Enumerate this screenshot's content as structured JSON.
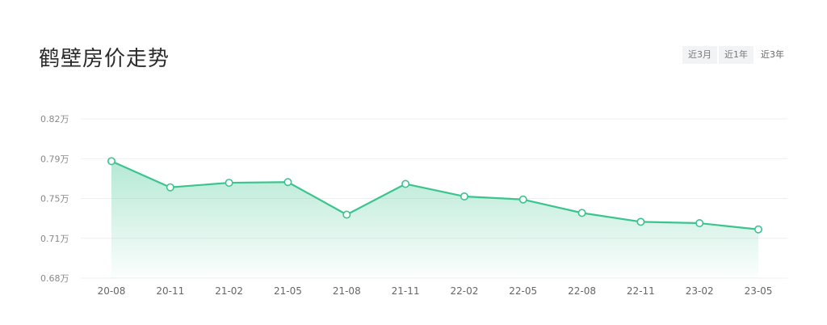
{
  "title": "鹤壁房价走势",
  "range_tabs": [
    {
      "label": "近3月"
    },
    {
      "label": "近1年"
    },
    {
      "label": "近3年"
    }
  ],
  "colors": {
    "line": "#3cc48f",
    "area_top": "#3cc48f",
    "grid": "#efefef",
    "point_fill": "#ffffff"
  },
  "chart_data": {
    "type": "area",
    "title": "",
    "xlabel": "",
    "ylabel": "",
    "categories": [
      "20-08",
      "20-11",
      "21-02",
      "21-05",
      "21-08",
      "21-11",
      "22-02",
      "22-05",
      "22-08",
      "22-11",
      "23-02",
      "23-05"
    ],
    "values": [
      0.7828,
      0.7598,
      0.7638,
      0.7644,
      0.7358,
      0.7628,
      0.7518,
      0.7491,
      0.7373,
      0.7295,
      0.7283,
      0.7228
    ],
    "value_unit": "万",
    "yticks": [
      "0.82万",
      "0.79万",
      "0.75万",
      "0.71万",
      "0.68万"
    ],
    "ylim": [
      0.68,
      0.82
    ],
    "grid": true,
    "legend": "none"
  }
}
